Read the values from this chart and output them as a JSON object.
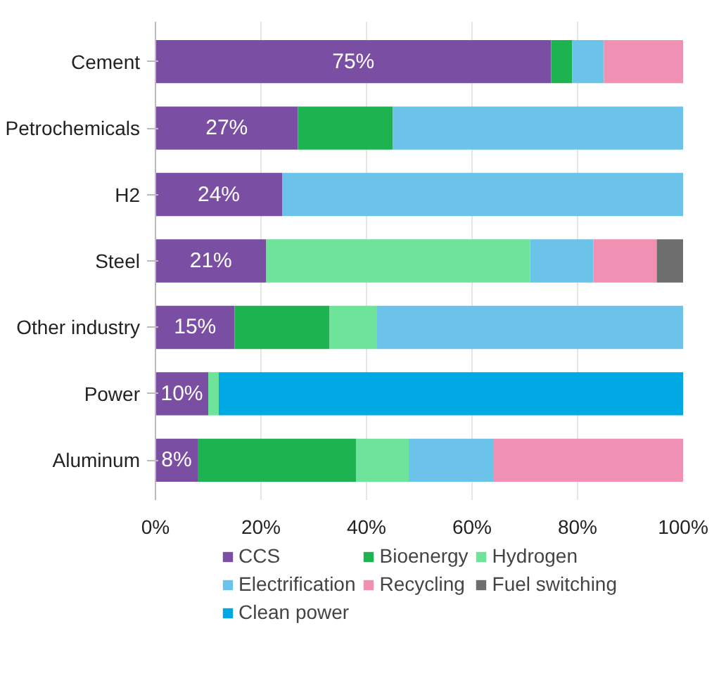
{
  "chart_data": {
    "type": "bar",
    "orientation": "horizontal",
    "stacked": true,
    "categories": [
      "Cement",
      "Petrochemicals",
      "H2",
      "Steel",
      "Other industry",
      "Power",
      "Aluminum"
    ],
    "series": [
      {
        "name": "CCS",
        "color": "#7a4ea3",
        "values": [
          75,
          27,
          24,
          21,
          15,
          10,
          8
        ],
        "value_labels": [
          "75%",
          "27%",
          "24%",
          "21%",
          "15%",
          "10%",
          "8%"
        ]
      },
      {
        "name": "Bioenergy",
        "color": "#1db350",
        "values": [
          4,
          18,
          null,
          null,
          18,
          null,
          30
        ]
      },
      {
        "name": "Hydrogen",
        "color": "#6ee39a",
        "values": [
          null,
          null,
          null,
          50,
          9,
          2,
          10
        ]
      },
      {
        "name": "Electrification",
        "color": "#6cc3ea",
        "values": [
          6,
          55,
          76,
          12,
          58,
          null,
          16
        ]
      },
      {
        "name": "Recycling",
        "color": "#f090b2",
        "values": [
          15,
          null,
          null,
          12,
          null,
          null,
          36
        ]
      },
      {
        "name": "Fuel switching",
        "color": "#6e6e6e",
        "values": [
          null,
          null,
          null,
          5,
          null,
          null,
          null
        ]
      },
      {
        "name": "Clean power",
        "color": "#00a9e3",
        "values": [
          null,
          null,
          null,
          null,
          null,
          88,
          null
        ]
      }
    ],
    "xlim": [
      0,
      100
    ],
    "xticks": [
      {
        "value": 0,
        "label": "0%"
      },
      {
        "value": 20,
        "label": "20%"
      },
      {
        "value": 40,
        "label": "40%"
      },
      {
        "value": 60,
        "label": "60%"
      },
      {
        "value": 80,
        "label": "80%"
      },
      {
        "value": 100,
        "label": "100%"
      }
    ],
    "grid": "x",
    "legend": "bottom"
  }
}
